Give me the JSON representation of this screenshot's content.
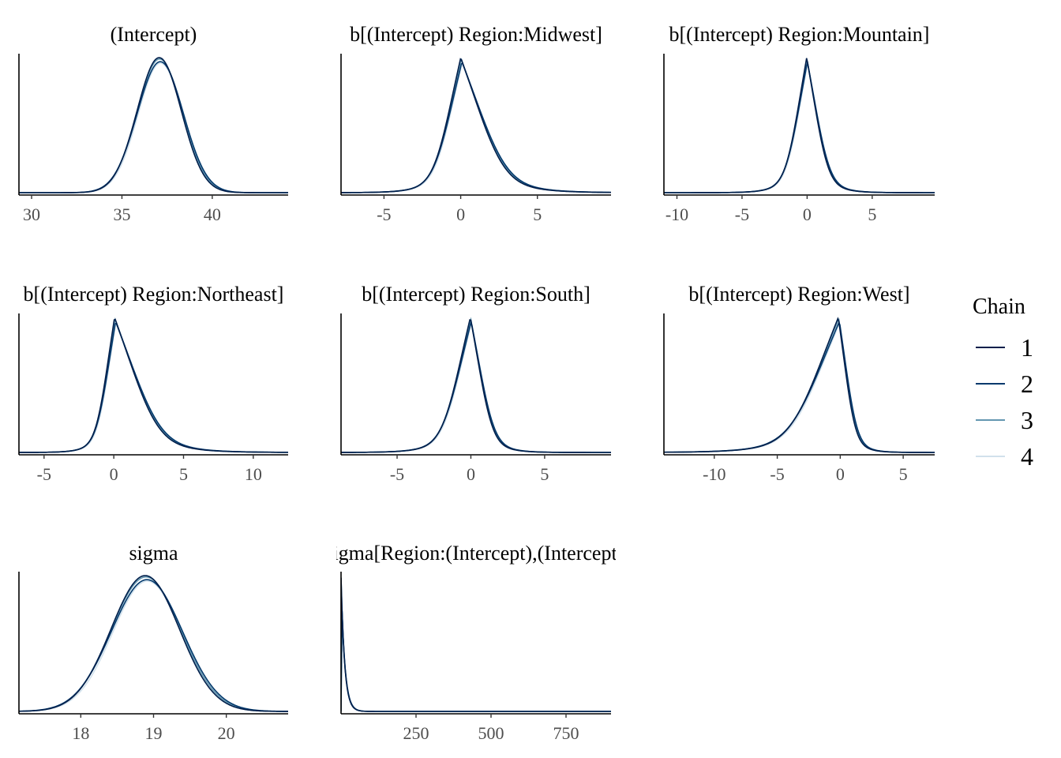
{
  "chart_data": {
    "type": "line",
    "chart_kind": "density overlay, faceted (bayesplot mcmc_dens_overlay)",
    "y_axis": "unlabeled density, no ticks",
    "grid": false,
    "legend": {
      "title": "Chain",
      "position": "right",
      "entries": [
        {
          "label": "1",
          "color": "#011f4b"
        },
        {
          "label": "2",
          "color": "#03396c"
        },
        {
          "label": "3",
          "color": "#6497b1"
        },
        {
          "label": "4",
          "color": "#d1e1ec"
        }
      ]
    },
    "panels": [
      {
        "title": "(Intercept)",
        "xlim": [
          29.3,
          44.2
        ],
        "ticks": [
          "30",
          "35",
          "40"
        ],
        "tick_values": [
          30,
          35,
          40
        ],
        "curves": [
          {
            "center": 37.1,
            "left_scale": 1.25,
            "right_scale": 1.25,
            "shape": "gauss"
          }
        ]
      },
      {
        "title": "b[(Intercept) Region:Midwest]",
        "xlim": [
          -7.8,
          9.8
        ],
        "ticks": [
          "-5",
          "0",
          "5"
        ],
        "tick_values": [
          -5,
          0,
          5
        ],
        "curves": [
          {
            "center": 0.05,
            "left_scale": 1.2,
            "right_scale": 1.9,
            "shape": "peaked"
          }
        ]
      },
      {
        "title": "b[(Intercept) Region:Mountain]",
        "xlim": [
          -11.0,
          9.8
        ],
        "ticks": [
          "-10",
          "-5",
          "0",
          "5"
        ],
        "tick_values": [
          -10,
          -5,
          0,
          5
        ],
        "curves": [
          {
            "center": 0.0,
            "left_scale": 1.1,
            "right_scale": 1.1,
            "shape": "peaked"
          }
        ]
      },
      {
        "title": "b[(Intercept) Region:Northeast]",
        "xlim": [
          -6.8,
          12.5
        ],
        "ticks": [
          "-5",
          "0",
          "5",
          "10"
        ],
        "tick_values": [
          -5,
          0,
          5,
          10
        ],
        "curves": [
          {
            "center": 0.1,
            "left_scale": 0.9,
            "right_scale": 2.1,
            "shape": "peaked"
          }
        ]
      },
      {
        "title": "b[(Intercept) Region:South]",
        "xlim": [
          -8.8,
          9.5
        ],
        "ticks": [
          "-5",
          "0",
          "5"
        ],
        "tick_values": [
          -5,
          0,
          5
        ],
        "curves": [
          {
            "center": 0.0,
            "left_scale": 1.3,
            "right_scale": 1.0,
            "shape": "peaked"
          }
        ]
      },
      {
        "title": "b[(Intercept) Region:West]",
        "xlim": [
          -14.0,
          7.5
        ],
        "ticks": [
          "-10",
          "-5",
          "0",
          "5"
        ],
        "tick_values": [
          -10,
          -5,
          0,
          5
        ],
        "curves": [
          {
            "center": -0.1,
            "left_scale": 2.6,
            "right_scale": 0.9,
            "shape": "peaked"
          }
        ]
      },
      {
        "title": "sigma",
        "xlim": [
          17.15,
          20.85
        ],
        "ticks": [
          "18",
          "19",
          "20"
        ],
        "tick_values": [
          18,
          19,
          20
        ],
        "curves": [
          {
            "center": 18.9,
            "left_scale": 0.48,
            "right_scale": 0.48,
            "shape": "gauss"
          }
        ]
      },
      {
        "title": "Sigma[Region:(Intercept),(Intercept)]",
        "xlim": [
          0,
          900
        ],
        "ticks": [
          "250",
          "500",
          "750"
        ],
        "tick_values": [
          250,
          500,
          750
        ],
        "curves": [
          {
            "center": 0.0,
            "left_scale": 0.1,
            "right_scale": 12,
            "shape": "decay"
          }
        ]
      }
    ]
  }
}
